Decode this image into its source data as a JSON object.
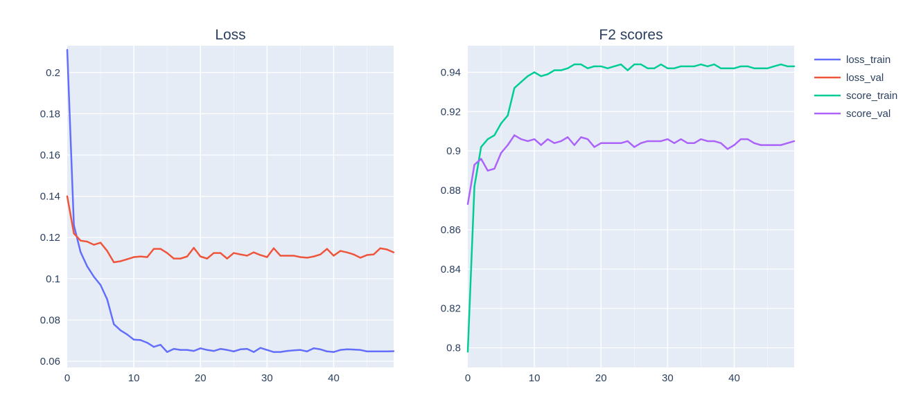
{
  "chart_data": [
    {
      "type": "line",
      "title": "Loss",
      "xlabel": "",
      "ylabel": "",
      "xlim": [
        0,
        49
      ],
      "ylim": [
        0.057,
        0.213
      ],
      "xticks": [
        0,
        10,
        20,
        30,
        40
      ],
      "xtick_labels": [
        "0",
        "10",
        "20",
        "30",
        "40"
      ],
      "yticks": [
        0.06,
        0.08,
        0.1,
        0.12,
        0.14,
        0.16,
        0.18,
        0.2
      ],
      "ytick_labels": [
        "0.06",
        "0.08",
        "0.1",
        "0.12",
        "0.14",
        "0.16",
        "0.18",
        "0.2"
      ],
      "grid": true,
      "x": [
        0,
        1,
        2,
        3,
        4,
        5,
        6,
        7,
        8,
        9,
        10,
        11,
        12,
        13,
        14,
        15,
        16,
        17,
        18,
        19,
        20,
        21,
        22,
        23,
        24,
        25,
        26,
        27,
        28,
        29,
        30,
        31,
        32,
        33,
        34,
        35,
        36,
        37,
        38,
        39,
        40,
        41,
        42,
        43,
        44,
        45,
        46,
        47,
        48,
        49
      ],
      "series": [
        {
          "name": "loss_train",
          "color": "#636efa",
          "values": [
            0.211,
            0.126,
            0.113,
            0.106,
            0.101,
            0.097,
            0.09,
            0.078,
            0.075,
            0.073,
            0.0705,
            0.0703,
            0.069,
            0.067,
            0.068,
            0.0645,
            0.066,
            0.0655,
            0.0655,
            0.065,
            0.0663,
            0.0655,
            0.065,
            0.066,
            0.0655,
            0.0648,
            0.0658,
            0.066,
            0.0645,
            0.0665,
            0.0655,
            0.0645,
            0.0645,
            0.065,
            0.0653,
            0.0655,
            0.0648,
            0.0663,
            0.0658,
            0.0648,
            0.0645,
            0.0655,
            0.0658,
            0.0657,
            0.0655,
            0.0648,
            0.0648,
            0.0648,
            0.0648,
            0.0649
          ]
        },
        {
          "name": "loss_val",
          "color": "#ef553b",
          "values": [
            0.14,
            0.122,
            0.1185,
            0.118,
            0.1165,
            0.1175,
            0.1135,
            0.108,
            0.1085,
            0.1095,
            0.1105,
            0.1108,
            0.1105,
            0.1145,
            0.1145,
            0.1125,
            0.1098,
            0.1098,
            0.1108,
            0.115,
            0.1108,
            0.1098,
            0.1125,
            0.1125,
            0.1098,
            0.1125,
            0.1118,
            0.1112,
            0.1128,
            0.1115,
            0.1105,
            0.1148,
            0.1112,
            0.1112,
            0.1112,
            0.1105,
            0.1102,
            0.1108,
            0.1118,
            0.1145,
            0.1112,
            0.1135,
            0.1128,
            0.1118,
            0.1102,
            0.1115,
            0.1118,
            0.1148,
            0.1142,
            0.1128
          ]
        }
      ]
    },
    {
      "type": "line",
      "title": "F2 scores",
      "xlabel": "",
      "ylabel": "",
      "xlim": [
        0,
        49
      ],
      "ylim": [
        0.79,
        0.9535
      ],
      "xticks": [
        0,
        10,
        20,
        30,
        40
      ],
      "xtick_labels": [
        "0",
        "10",
        "20",
        "30",
        "40"
      ],
      "yticks": [
        0.8,
        0.82,
        0.84,
        0.86,
        0.88,
        0.9,
        0.92,
        0.94
      ],
      "ytick_labels": [
        "0.8",
        "0.82",
        "0.84",
        "0.86",
        "0.88",
        "0.9",
        "0.92",
        "0.94"
      ],
      "grid": true,
      "x": [
        0,
        1,
        2,
        3,
        4,
        5,
        6,
        7,
        8,
        9,
        10,
        11,
        12,
        13,
        14,
        15,
        16,
        17,
        18,
        19,
        20,
        21,
        22,
        23,
        24,
        25,
        26,
        27,
        28,
        29,
        30,
        31,
        32,
        33,
        34,
        35,
        36,
        37,
        38,
        39,
        40,
        41,
        42,
        43,
        44,
        45,
        46,
        47,
        48,
        49
      ],
      "series": [
        {
          "name": "score_train",
          "color": "#00cc96",
          "values": [
            0.798,
            0.882,
            0.902,
            0.906,
            0.908,
            0.914,
            0.918,
            0.932,
            0.935,
            0.938,
            0.94,
            0.938,
            0.939,
            0.941,
            0.941,
            0.942,
            0.944,
            0.944,
            0.942,
            0.943,
            0.943,
            0.942,
            0.943,
            0.944,
            0.941,
            0.944,
            0.944,
            0.942,
            0.942,
            0.944,
            0.942,
            0.942,
            0.943,
            0.943,
            0.943,
            0.944,
            0.943,
            0.944,
            0.942,
            0.942,
            0.942,
            0.943,
            0.943,
            0.942,
            0.942,
            0.942,
            0.943,
            0.944,
            0.943,
            0.943
          ]
        },
        {
          "name": "score_val",
          "color": "#ab63fa",
          "values": [
            0.873,
            0.893,
            0.896,
            0.89,
            0.891,
            0.899,
            0.903,
            0.908,
            0.906,
            0.905,
            0.906,
            0.903,
            0.906,
            0.904,
            0.905,
            0.907,
            0.903,
            0.907,
            0.906,
            0.902,
            0.904,
            0.904,
            0.904,
            0.904,
            0.905,
            0.902,
            0.904,
            0.905,
            0.905,
            0.905,
            0.906,
            0.904,
            0.906,
            0.904,
            0.904,
            0.906,
            0.905,
            0.905,
            0.904,
            0.901,
            0.903,
            0.906,
            0.906,
            0.904,
            0.903,
            0.903,
            0.903,
            0.903,
            0.904,
            0.905
          ]
        }
      ]
    }
  ],
  "legend": {
    "placement": "right",
    "entries": [
      {
        "name": "loss_train",
        "color": "#636efa"
      },
      {
        "name": "loss_val",
        "color": "#ef553b"
      },
      {
        "name": "score_train",
        "color": "#00cc96"
      },
      {
        "name": "score_val",
        "color": "#ab63fa"
      }
    ]
  },
  "colors": {
    "plot_background": "#e5ecf6",
    "grid": "#ffffff",
    "text": "#2a3f5f"
  }
}
